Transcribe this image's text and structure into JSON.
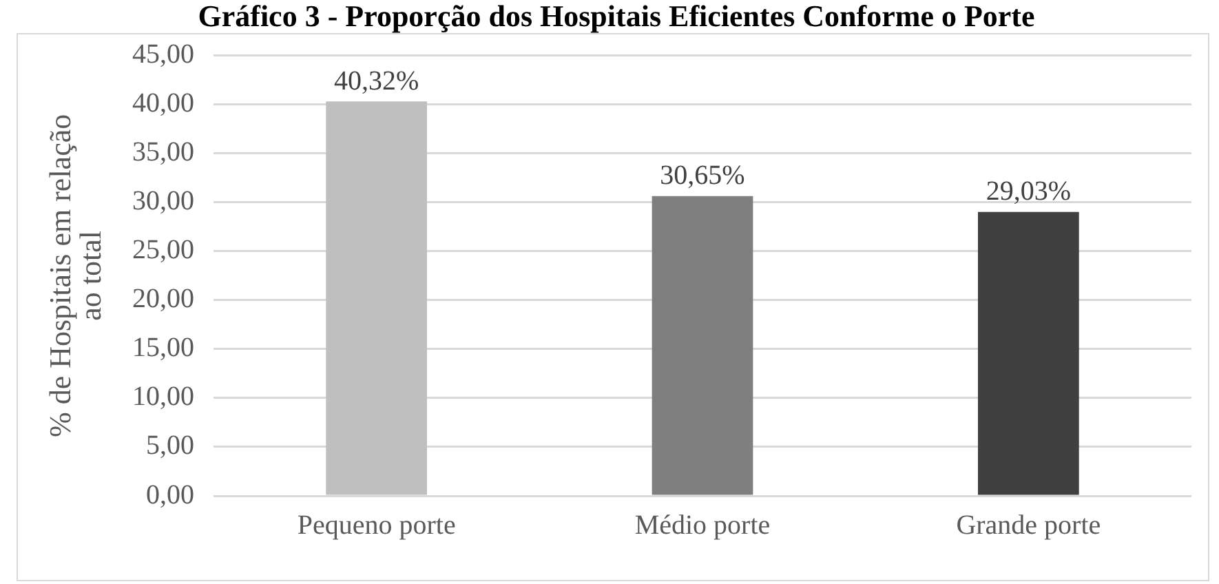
{
  "chart_data": {
    "type": "bar",
    "title": "Gráfico 3 - Proporção dos Hospitais Eficientes Conforme o Porte",
    "ylabel": "% de Hospitais em relação ao total",
    "categories": [
      "Pequeno porte",
      "Médio porte",
      "Grande porte"
    ],
    "values": [
      40.32,
      30.65,
      29.03
    ],
    "colors": [
      "#bfbfbf",
      "#7f7f7f",
      "#404040"
    ],
    "value_labels": [
      "40,32%",
      "30,65%",
      "29,03%"
    ],
    "ylim": [
      0,
      45
    ],
    "yticks": [
      {
        "value": 0,
        "label": "0,00"
      },
      {
        "value": 5,
        "label": "5,00"
      },
      {
        "value": 10,
        "label": "10,00"
      },
      {
        "value": 15,
        "label": "15,00"
      },
      {
        "value": 20,
        "label": "20,00"
      },
      {
        "value": 25,
        "label": "25,00"
      },
      {
        "value": 30,
        "label": "30,00"
      },
      {
        "value": 35,
        "label": "35,00"
      },
      {
        "value": 40,
        "label": "40,00"
      },
      {
        "value": 45,
        "label": "45,00"
      }
    ],
    "grid": "y",
    "legend": false
  }
}
